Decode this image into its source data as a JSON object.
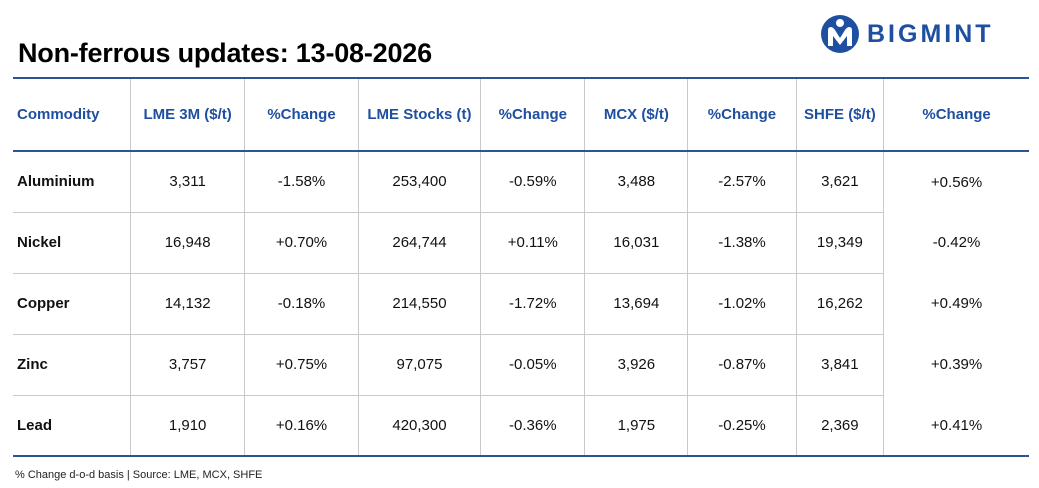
{
  "title": "Non-ferrous updates: 13-08-2026",
  "logo": {
    "text": "BIGMINT",
    "color": "#1f4fa0"
  },
  "colors": {
    "negative": "#e3000f",
    "positive": "#00a04a",
    "header": "#1f4fa0",
    "rule": "#2a5496"
  },
  "table": {
    "headers": [
      "Commodity",
      "LME 3M ($/t)",
      "%Change",
      "LME Stocks (t)",
      "%Change",
      "MCX ($/t)",
      "%Change",
      "SHFE ($/t)",
      "%Change"
    ],
    "rows": [
      {
        "commodity": "Aluminium",
        "lme3m": "3,311",
        "lme3m_chg": "-1.58%",
        "stocks": "253,400",
        "stocks_chg": "-0.59%",
        "mcx": "3,488",
        "mcx_chg": "-2.57%",
        "shfe": "3,621",
        "shfe_chg": "+0.56%"
      },
      {
        "commodity": "Nickel",
        "lme3m": "16,948",
        "lme3m_chg": "+0.70%",
        "stocks": "264,744",
        "stocks_chg": "+0.11%",
        "mcx": "16,031",
        "mcx_chg": "-1.38%",
        "shfe": "19,349",
        "shfe_chg": "-0.42%"
      },
      {
        "commodity": "Copper",
        "lme3m": "14,132",
        "lme3m_chg": "-0.18%",
        "stocks": "214,550",
        "stocks_chg": "-1.72%",
        "mcx": "13,694",
        "mcx_chg": "-1.02%",
        "shfe": "16,262",
        "shfe_chg": "+0.49%"
      },
      {
        "commodity": "Zinc",
        "lme3m": "3,757",
        "lme3m_chg": "+0.75%",
        "stocks": "97,075",
        "stocks_chg": "-0.05%",
        "mcx": "3,926",
        "mcx_chg": "-0.87%",
        "shfe": "3,841",
        "shfe_chg": "+0.39%"
      },
      {
        "commodity": "Lead",
        "lme3m": "1,910",
        "lme3m_chg": "+0.16%",
        "stocks": "420,300",
        "stocks_chg": "-0.36%",
        "mcx": "1,975",
        "mcx_chg": "-0.25%",
        "shfe": "2,369",
        "shfe_chg": "+0.41%"
      }
    ]
  },
  "footnote": "% Change d-o-d basis | Source: LME, MCX, SHFE"
}
